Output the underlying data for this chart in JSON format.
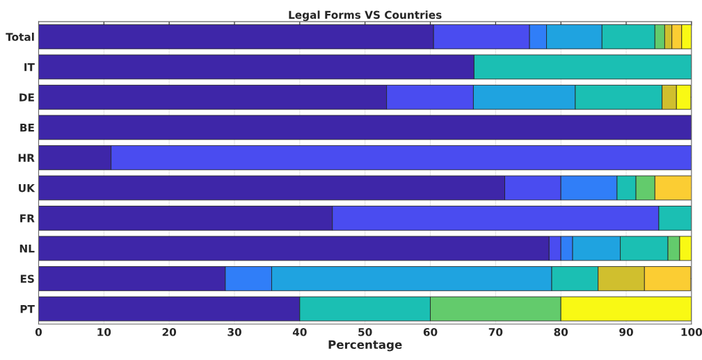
{
  "chart_data": {
    "type": "bar",
    "orientation": "horizontal",
    "stacked": true,
    "title": "Legal Forms VS Countries",
    "xlabel": "Percentage",
    "categories": [
      "Total",
      "IT",
      "DE",
      "BE",
      "HR",
      "UK",
      "FR",
      "NL",
      "ES",
      "PT"
    ],
    "xlim": [
      0,
      100
    ],
    "xticks": [
      0,
      10,
      20,
      30,
      40,
      50,
      60,
      70,
      80,
      90,
      100
    ],
    "grid": "x",
    "series": [
      {
        "color": "#3e26a8",
        "values": [
          60.5,
          66.7,
          53.3,
          100,
          11.1,
          71.4,
          45,
          78.2,
          28.6,
          40
        ]
      },
      {
        "color": "#4a4cf0",
        "values": [
          14.7,
          0,
          13.3,
          0,
          88.9,
          8.6,
          50,
          1.8,
          0,
          0
        ]
      },
      {
        "color": "#307ef8",
        "values": [
          2.6,
          0,
          0,
          0,
          0,
          8.6,
          0,
          1.8,
          7.1,
          0
        ]
      },
      {
        "color": "#1fa3e0",
        "values": [
          8.5,
          0,
          15.6,
          0,
          0,
          0,
          0,
          7.3,
          42.9,
          0
        ]
      },
      {
        "color": "#1bbfb3",
        "values": [
          8.1,
          33.3,
          13.3,
          0,
          0,
          2.9,
          5,
          7.3,
          7.1,
          20
        ]
      },
      {
        "color": "#63cb6c",
        "values": [
          1.5,
          0,
          0,
          0,
          0,
          2.9,
          0,
          1.8,
          0,
          20
        ]
      },
      {
        "color": "#d0bf2e",
        "values": [
          1.1,
          0,
          2.2,
          0,
          0,
          0,
          0,
          0,
          7.1,
          0
        ]
      },
      {
        "color": "#fbcd33",
        "values": [
          1.5,
          0,
          0,
          0,
          0,
          5.7,
          0,
          0,
          7.1,
          0
        ]
      },
      {
        "color": "#f9f914",
        "values": [
          1.5,
          0,
          2.2,
          0,
          0,
          0,
          0,
          1.8,
          0,
          20
        ]
      }
    ]
  }
}
